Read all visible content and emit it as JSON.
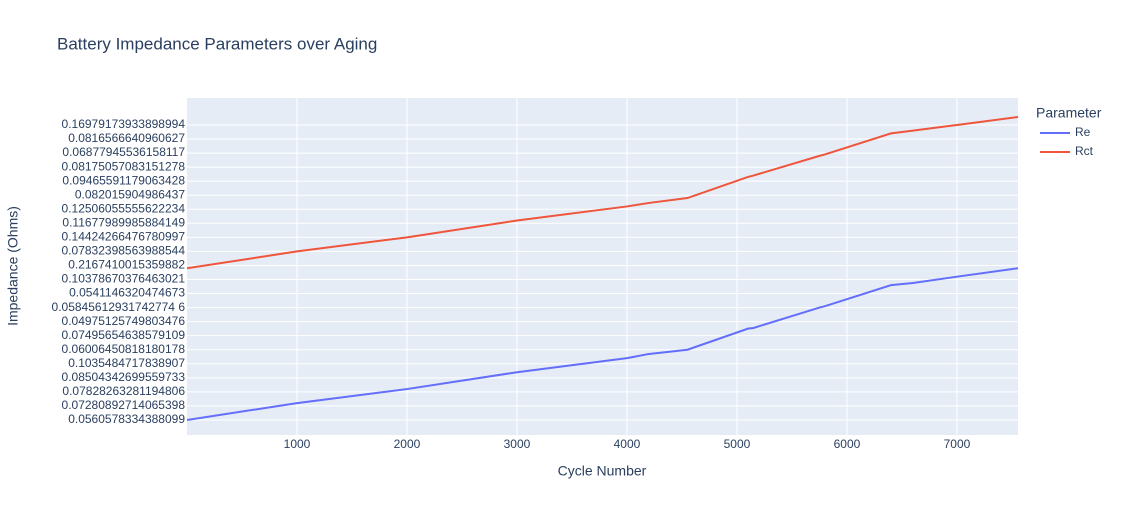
{
  "chart_data": {
    "type": "line",
    "title": "Battery Impedance Parameters over Aging",
    "x_label": "Cycle Number",
    "y_label": "Impedance (Ohms)",
    "legend_title": "Parameter",
    "legend": "right",
    "grid": true,
    "xlim": [
      0,
      7555
    ],
    "xticks": [
      1000,
      2000,
      3000,
      4000,
      5000,
      6000,
      7000
    ],
    "ylim": [
      -1.07,
      22.92
    ],
    "yticks": [
      {
        "value": 0,
        "label": "0.0560578334388099"
      },
      {
        "value": 1,
        "label": "0.07280892714065398"
      },
      {
        "value": 2,
        "label": "0.07828263281194806"
      },
      {
        "value": 3,
        "label": "0.08504342699559733"
      },
      {
        "value": 4,
        "label": "0.1035484717838907"
      },
      {
        "value": 5,
        "label": "0.06006450818180178"
      },
      {
        "value": 6,
        "label": "0.07495654638579109"
      },
      {
        "value": 7,
        "label": "0.04975125749803476"
      },
      {
        "value": 8,
        "label": "0.05845612931742774 6"
      },
      {
        "value": 9,
        "label": "0.0541146320474673"
      },
      {
        "value": 10,
        "label": "0.10378670376463021"
      },
      {
        "value": 11,
        "label": "0.2167410015359882"
      },
      {
        "value": 12,
        "label": "0.07832398563988544"
      },
      {
        "value": 13,
        "label": "0.14424266476780997"
      },
      {
        "value": 14,
        "label": "0.11677989985884149"
      },
      {
        "value": 15,
        "label": "0.12506055555622234"
      },
      {
        "value": 16,
        "label": "0.082015904986437"
      },
      {
        "value": 17,
        "label": "0.09465591179063428"
      },
      {
        "value": 18,
        "label": "0.08175057083151278"
      },
      {
        "value": 19,
        "label": "0.06877945536158117"
      },
      {
        "value": 20,
        "label": "0.0816566640960627"
      },
      {
        "value": 21,
        "label": "0.16979173933898994"
      }
    ],
    "series": [
      {
        "name": "Re",
        "color": "#636efa",
        "x": [
          0,
          1000,
          2000,
          3000,
          4000,
          4200,
          4550,
          5100,
          5150,
          5750,
          5800,
          6400,
          6600,
          7000,
          7555
        ],
        "values": [
          0,
          1.2,
          2.2,
          3.4,
          4.4,
          4.7,
          5.0,
          6.5,
          6.55,
          8.0,
          8.1,
          9.6,
          9.75,
          10.2,
          10.8
        ]
      },
      {
        "name": "Rct",
        "color": "#EF553B",
        "x": [
          0,
          1000,
          2000,
          3000,
          4000,
          4200,
          4550,
          5100,
          5150,
          5750,
          5800,
          6400,
          6600,
          7000,
          7555
        ],
        "values": [
          10.8,
          12.0,
          13.0,
          14.2,
          15.2,
          15.45,
          15.8,
          17.3,
          17.4,
          18.8,
          18.9,
          20.4,
          20.6,
          21.0,
          21.57
        ]
      }
    ]
  }
}
